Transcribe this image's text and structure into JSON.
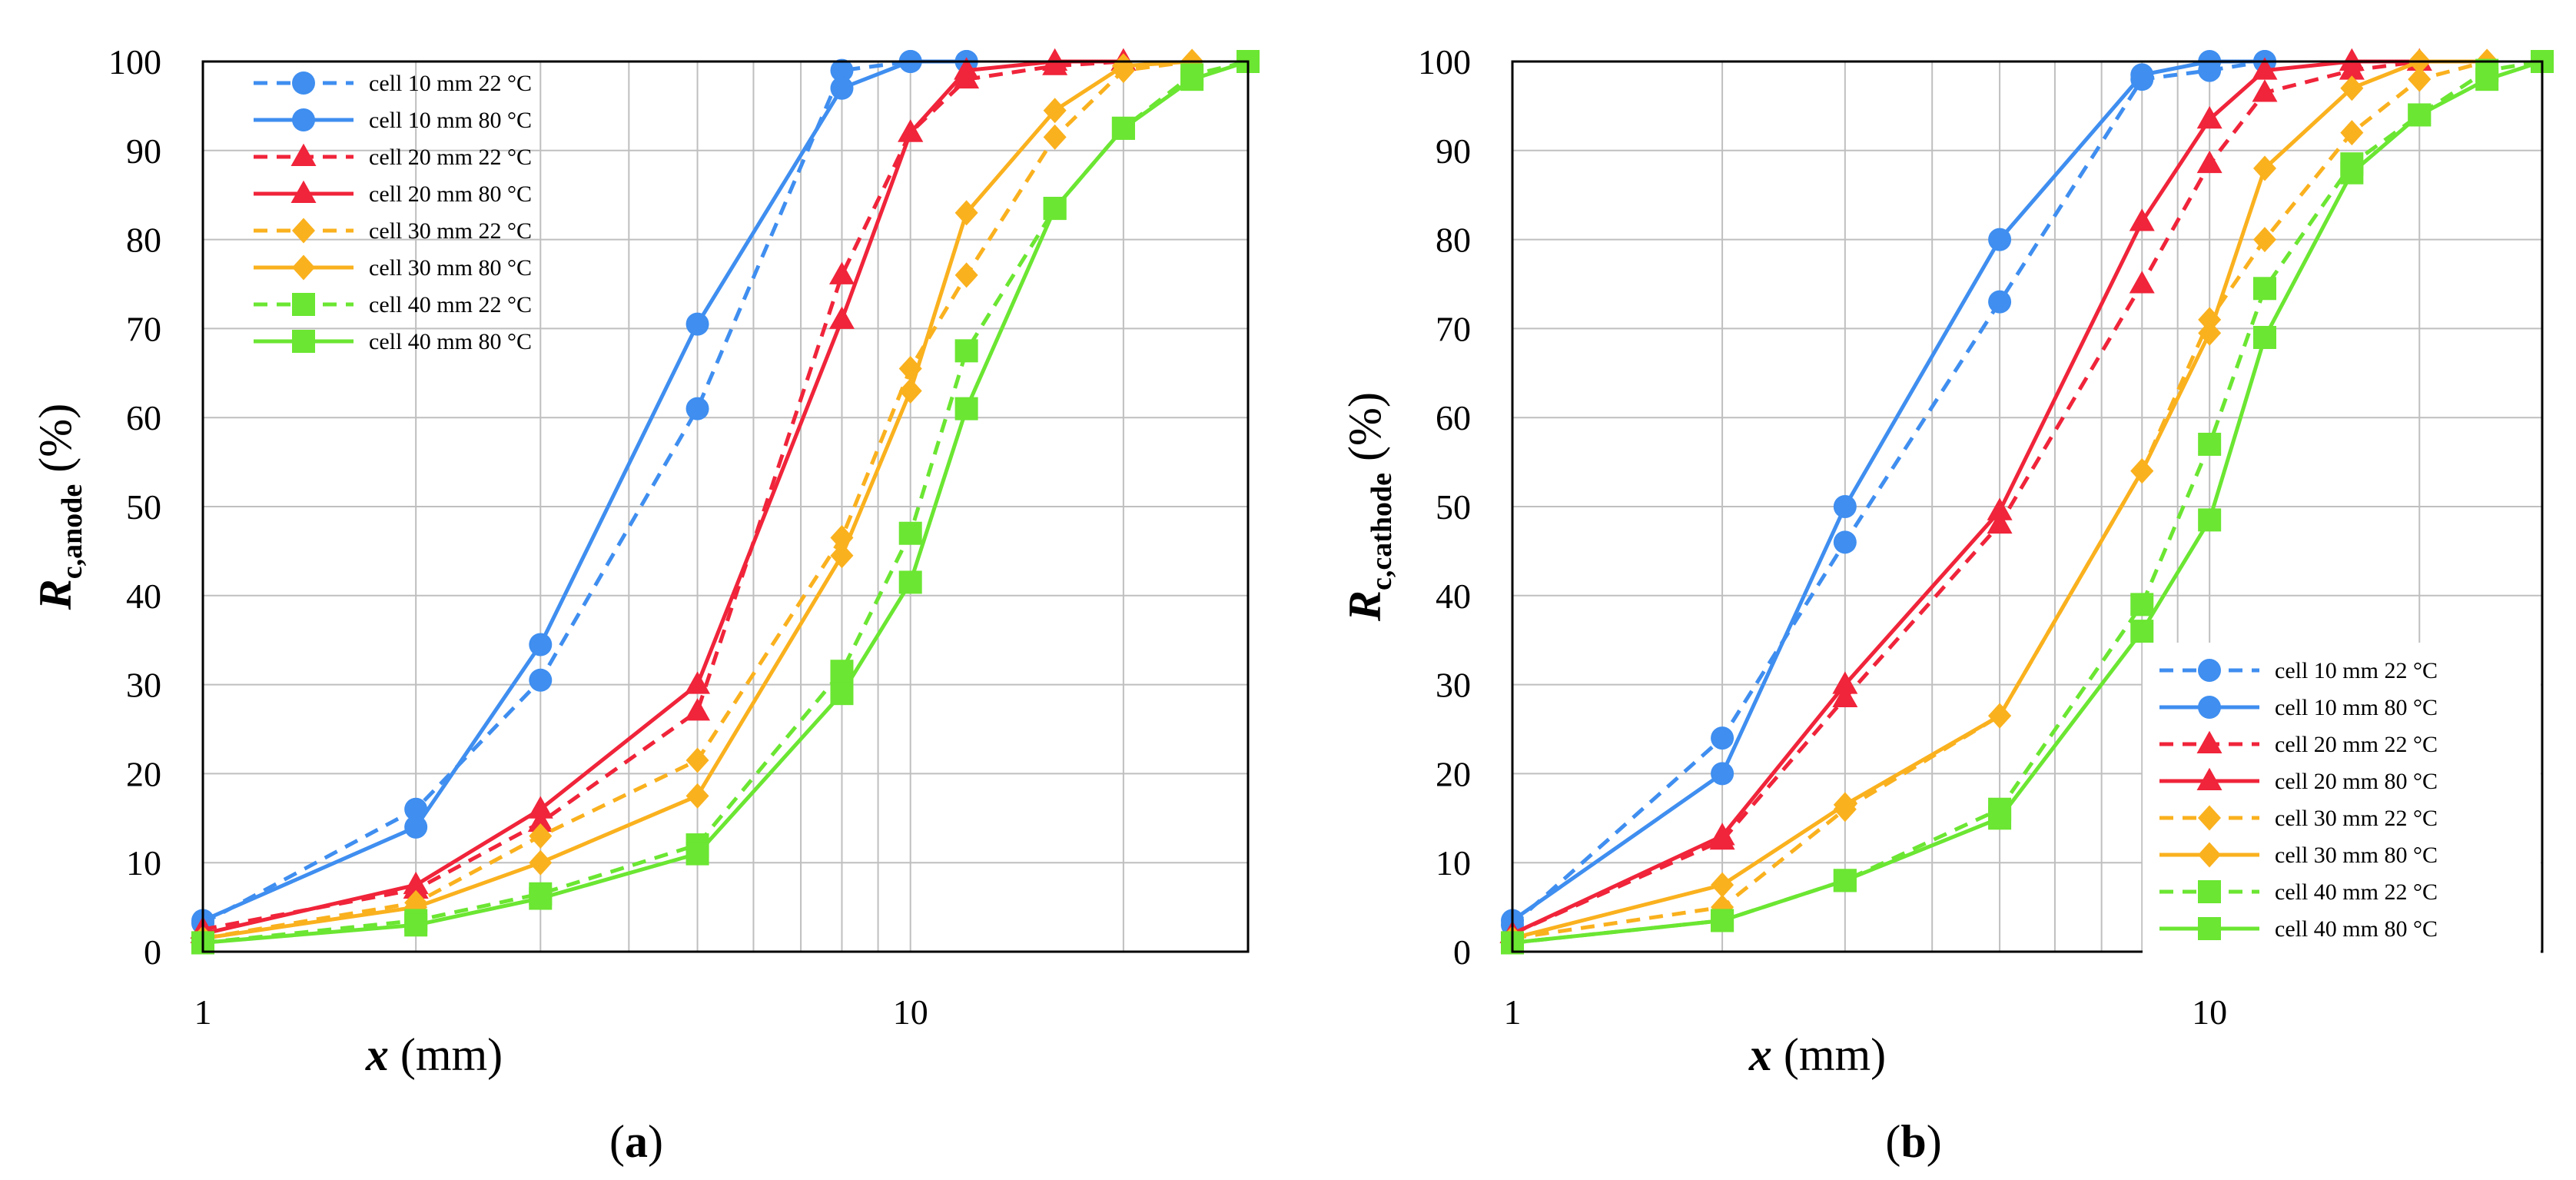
{
  "chart_data": [
    {
      "type": "line",
      "panel_label": "a",
      "xlabel": {
        "symbol": "x",
        "unit": " (mm)"
      },
      "ylabel": {
        "symbol": "R",
        "subscript": "c,anode",
        "unit": " (%)"
      },
      "xscale": "log",
      "xlim": [
        1,
        30
      ],
      "ylim": [
        0,
        100
      ],
      "x_tick_labels": [
        "1",
        "10"
      ],
      "y_ticks": [
        0,
        10,
        20,
        30,
        40,
        50,
        60,
        70,
        80,
        90,
        100
      ],
      "grid": true,
      "legend_position": "top-left",
      "series": [
        {
          "name": "cell 10 mm 22 °C",
          "color": "#3f8ef0",
          "dash": true,
          "marker": "circle",
          "x": [
            1,
            2,
            3,
            5,
            8,
            10,
            12
          ],
          "y": [
            3.2,
            16,
            30.5,
            61,
            99,
            100,
            100
          ]
        },
        {
          "name": "cell 10 mm 80 °C",
          "color": "#3f8ef0",
          "dash": false,
          "marker": "circle",
          "x": [
            1,
            2,
            3,
            5,
            8,
            10,
            12
          ],
          "y": [
            3.5,
            14,
            34.5,
            70.5,
            97,
            100,
            100
          ]
        },
        {
          "name": "cell 20 mm 22 °C",
          "color": "#f0243a",
          "dash": true,
          "marker": "triangle",
          "x": [
            1,
            2,
            3,
            5,
            8,
            10,
            12,
            16,
            20
          ],
          "y": [
            2.5,
            7,
            14.5,
            27,
            76,
            92,
            98,
            99.5,
            100
          ]
        },
        {
          "name": "cell 20 mm 80 °C",
          "color": "#f0243a",
          "dash": false,
          "marker": "triangle",
          "x": [
            1,
            2,
            3,
            5,
            8,
            10,
            12,
            16,
            20
          ],
          "y": [
            2,
            7.5,
            16,
            30,
            71,
            92,
            99,
            100,
            100
          ]
        },
        {
          "name": "cell 30 mm 22 °C",
          "color": "#fab11e",
          "dash": true,
          "marker": "diamond",
          "x": [
            1,
            2,
            3,
            5,
            8,
            10,
            12,
            16,
            20,
            25
          ],
          "y": [
            1.5,
            5.5,
            13,
            21.5,
            46.5,
            65.5,
            76,
            91.5,
            99,
            100
          ]
        },
        {
          "name": "cell 30 mm 80 °C",
          "color": "#fab11e",
          "dash": false,
          "marker": "diamond",
          "x": [
            1,
            2,
            3,
            5,
            8,
            10,
            12,
            16,
            20,
            25
          ],
          "y": [
            1.5,
            5,
            10,
            17.5,
            44.5,
            63,
            83,
            94.5,
            99.5,
            100
          ]
        },
        {
          "name": "cell 40 mm 22 °C",
          "color": "#6be632",
          "dash": true,
          "marker": "square",
          "x": [
            1,
            2,
            3,
            5,
            8,
            10,
            12,
            16,
            20,
            25,
            30
          ],
          "y": [
            1,
            3.5,
            6.5,
            12,
            31.5,
            47,
            67.5,
            83.5,
            92.5,
            98.5,
            100
          ]
        },
        {
          "name": "cell 40 mm 80 °C",
          "color": "#6be632",
          "dash": false,
          "marker": "square",
          "x": [
            1,
            2,
            3,
            5,
            8,
            10,
            12,
            16,
            20,
            25,
            30
          ],
          "y": [
            1,
            3,
            6,
            11,
            29,
            41.5,
            61,
            83.5,
            92.5,
            98,
            100
          ]
        }
      ]
    },
    {
      "type": "line",
      "panel_label": "b",
      "xlabel": {
        "symbol": "x",
        "unit": " (mm)"
      },
      "ylabel": {
        "symbol": "R",
        "subscript": "c,cathode",
        "unit": " (%)"
      },
      "xscale": "log",
      "xlim": [
        1,
        30
      ],
      "ylim": [
        0,
        100
      ],
      "x_tick_labels": [
        "1",
        "10"
      ],
      "y_ticks": [
        0,
        10,
        20,
        30,
        40,
        50,
        60,
        70,
        80,
        90,
        100
      ],
      "grid": true,
      "legend_position": "bottom-right",
      "series": [
        {
          "name": "cell 10 mm 22 °C",
          "color": "#3f8ef0",
          "dash": true,
          "marker": "circle",
          "x": [
            1,
            2,
            3,
            5,
            8,
            10,
            12
          ],
          "y": [
            3,
            24,
            46,
            73,
            98,
            99,
            100
          ]
        },
        {
          "name": "cell 10 mm 80 °C",
          "color": "#3f8ef0",
          "dash": false,
          "marker": "circle",
          "x": [
            1,
            2,
            3,
            5,
            8,
            10,
            12
          ],
          "y": [
            3.5,
            20,
            50,
            80,
            98.5,
            100,
            100
          ]
        },
        {
          "name": "cell 20 mm 22 °C",
          "color": "#f0243a",
          "dash": true,
          "marker": "triangle",
          "x": [
            1,
            2,
            3,
            5,
            8,
            10,
            12,
            16,
            20
          ],
          "y": [
            2,
            12.5,
            28.5,
            48,
            75,
            88.5,
            96.5,
            99,
            100
          ]
        },
        {
          "name": "cell 20 mm 80 °C",
          "color": "#f0243a",
          "dash": false,
          "marker": "triangle",
          "x": [
            1,
            2,
            3,
            5,
            8,
            10,
            12,
            16,
            20
          ],
          "y": [
            2,
            13,
            30,
            49.5,
            82,
            93.5,
            99,
            100,
            100
          ]
        },
        {
          "name": "cell 30 mm 22 °C",
          "color": "#fab11e",
          "dash": true,
          "marker": "diamond",
          "x": [
            1,
            2,
            3,
            5,
            8,
            10,
            12,
            16,
            20,
            25
          ],
          "y": [
            1.5,
            5,
            16,
            26.5,
            54,
            71,
            80,
            92,
            98,
            100
          ]
        },
        {
          "name": "cell 30 mm 80 °C",
          "color": "#fab11e",
          "dash": false,
          "marker": "diamond",
          "x": [
            1,
            2,
            3,
            5,
            8,
            10,
            12,
            16,
            20,
            25
          ],
          "y": [
            1.5,
            7.5,
            16.5,
            26.5,
            54,
            69.5,
            88,
            97,
            100,
            100
          ]
        },
        {
          "name": "cell 40 mm 22 °C",
          "color": "#6be632",
          "dash": true,
          "marker": "square",
          "x": [
            1,
            2,
            3,
            5,
            8,
            10,
            12,
            16,
            20,
            25,
            30
          ],
          "y": [
            1,
            3.5,
            8,
            16,
            39,
            57,
            74.5,
            88.5,
            94,
            99,
            100
          ]
        },
        {
          "name": "cell 40 mm 80 °C",
          "color": "#6be632",
          "dash": false,
          "marker": "square",
          "x": [
            1,
            2,
            3,
            5,
            8,
            10,
            12,
            16,
            20,
            25,
            30
          ],
          "y": [
            1,
            3.5,
            8,
            15,
            36,
            48.5,
            69,
            87.5,
            94,
            98,
            100
          ]
        }
      ]
    }
  ]
}
